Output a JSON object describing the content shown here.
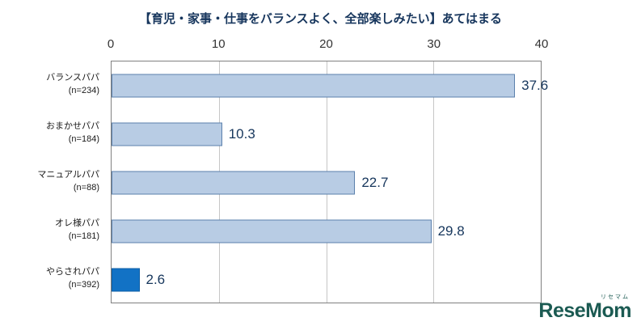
{
  "chart_data": {
    "type": "bar",
    "orientation": "horizontal",
    "title": "【育児・家事・仕事をバランスよく、全部楽しみたい】あてはまる",
    "categories": [
      "バランスパパ",
      "おまかせパパ",
      "マニュアルパパ",
      "オレ様パパ",
      "やらされパパ"
    ],
    "category_sublabels": [
      "(n=234)",
      "(n=184)",
      "(n=88)",
      "(n=181)",
      "(n=392)"
    ],
    "values": [
      37.6,
      10.3,
      22.7,
      29.8,
      2.6
    ],
    "value_labels": [
      "37.6",
      "10.3",
      "22.7",
      "29.8",
      "2.6"
    ],
    "xlim": [
      0,
      40
    ],
    "x_ticks": [
      0,
      10,
      20,
      30,
      40
    ],
    "grid": "vertical",
    "legend": "none",
    "bar_fill_colors": [
      "#b8cce4",
      "#b8cce4",
      "#b8cce4",
      "#b8cce4",
      "#1272c5"
    ],
    "bar_border_colors": [
      "#5b80ac",
      "#5b80ac",
      "#5b80ac",
      "#5b80ac",
      "#0c5ea6"
    ]
  },
  "logo": {
    "text": "ReseMom",
    "ruby": "リセマム",
    "color": "#1b5a52"
  }
}
